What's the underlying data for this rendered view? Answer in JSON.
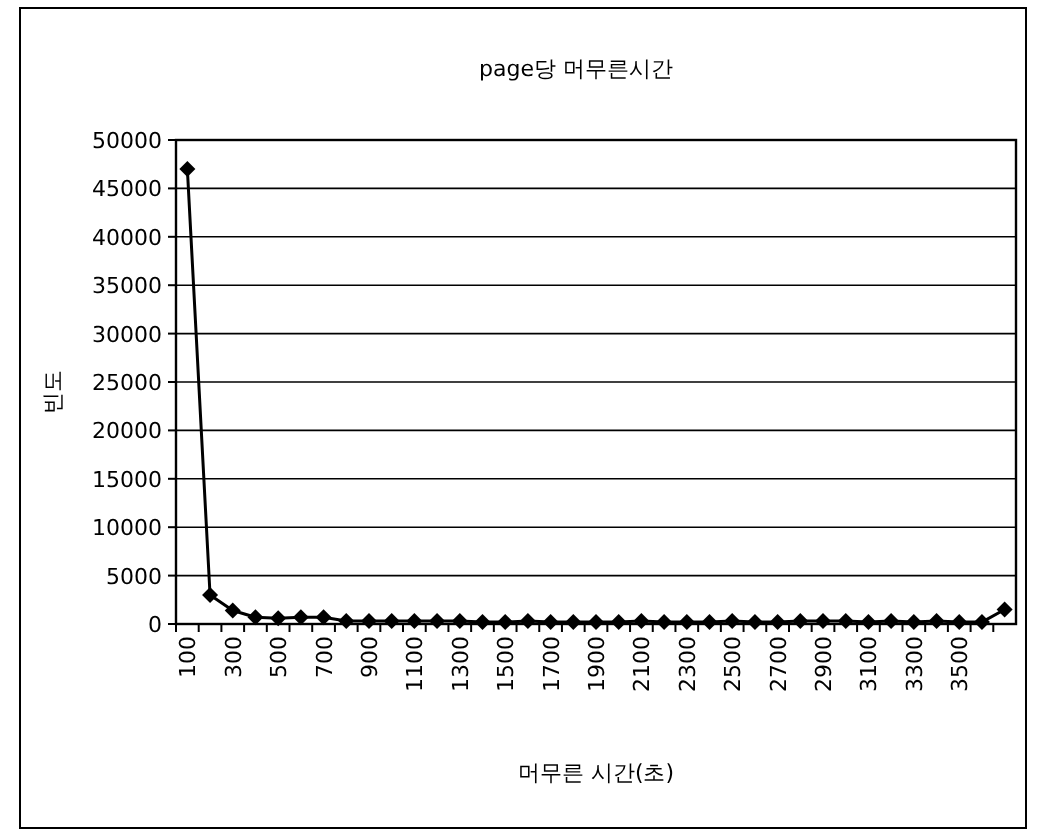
{
  "chart_data": {
    "type": "line",
    "title": "page당 머무른시간",
    "xlabel": "머무른 시간(초)",
    "ylabel": "빈도",
    "categories": [
      "100",
      null,
      "300",
      null,
      "500",
      null,
      "700",
      null,
      "900",
      null,
      "1100",
      null,
      "1300",
      null,
      "1500",
      null,
      "1700",
      null,
      "1900",
      null,
      "2100",
      null,
      "2300",
      null,
      "2500",
      null,
      "2700",
      null,
      "2900",
      null,
      "3100",
      null,
      "3300",
      null,
      "3500",
      null,
      null
    ],
    "series": [
      {
        "color": "#000000",
        "values": [
          47000,
          3000,
          1400,
          700,
          600,
          700,
          700,
          300,
          300,
          300,
          300,
          300,
          300,
          200,
          200,
          300,
          200,
          200,
          200,
          200,
          300,
          200,
          200,
          200,
          300,
          200,
          200,
          300,
          300,
          300,
          200,
          300,
          200,
          300,
          200,
          200,
          1500
        ]
      }
    ],
    "ylim": [
      0,
      50000
    ],
    "yticks": [
      0,
      5000,
      10000,
      15000,
      20000,
      25000,
      30000,
      35000,
      40000,
      45000,
      50000
    ],
    "grid": "y",
    "marker": "diamond",
    "line_style": "solid"
  }
}
